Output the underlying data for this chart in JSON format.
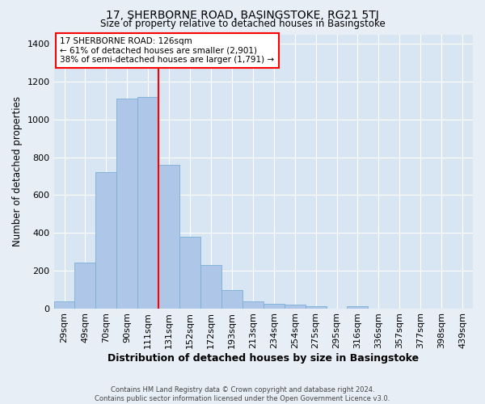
{
  "title": "17, SHERBORNE ROAD, BASINGSTOKE, RG21 5TJ",
  "subtitle": "Size of property relative to detached houses in Basingstoke",
  "xlabel": "Distribution of detached houses by size in Basingstoke",
  "ylabel": "Number of detached properties",
  "bar_labels": [
    "29sqm",
    "49sqm",
    "70sqm",
    "90sqm",
    "111sqm",
    "131sqm",
    "152sqm",
    "172sqm",
    "193sqm",
    "213sqm",
    "234sqm",
    "254sqm",
    "275sqm",
    "295sqm",
    "316sqm",
    "336sqm",
    "357sqm",
    "377sqm",
    "398sqm",
    "439sqm"
  ],
  "bar_values": [
    35,
    240,
    720,
    1110,
    1120,
    760,
    380,
    230,
    95,
    35,
    25,
    20,
    10,
    0,
    10,
    0,
    0,
    0,
    0,
    0
  ],
  "bar_color": "#aec6e8",
  "bar_edge_color": "#7aafd4",
  "vline_index": 5,
  "vline_color": "red",
  "annotation_line1": "17 SHERBORNE ROAD: 126sqm",
  "annotation_line2": "← 61% of detached houses are smaller (2,901)",
  "annotation_line3": "38% of semi-detached houses are larger (1,791) →",
  "annotation_box_color": "white",
  "annotation_box_edge": "red",
  "ylim": [
    0,
    1450
  ],
  "yticks": [
    0,
    200,
    400,
    600,
    800,
    1000,
    1200,
    1400
  ],
  "footer1": "Contains HM Land Registry data © Crown copyright and database right 2024.",
  "footer2": "Contains public sector information licensed under the Open Government Licence v3.0.",
  "bg_color": "#e8eef5",
  "plot_bg_color": "#d8e6f3"
}
